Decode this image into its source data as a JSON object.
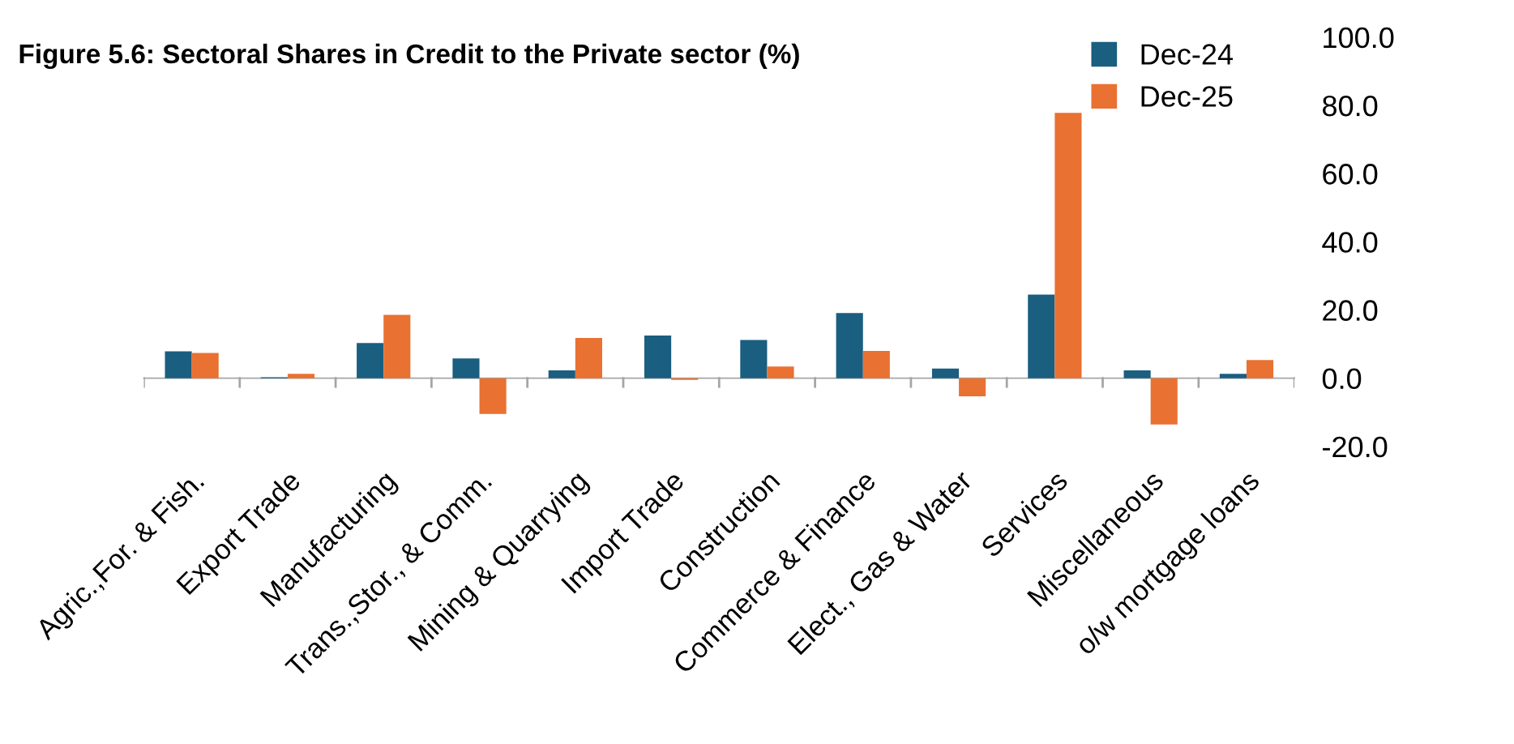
{
  "chart_data": {
    "type": "bar",
    "title": "Figure 5.6: Sectoral Shares in Credit to the Private sector (%)",
    "categories": [
      "Agric.,For. & Fish.",
      "Export Trade",
      "Manufacturing",
      "Trans.,Stor., & Comm.",
      "Mining & Quarrying",
      "Import Trade",
      "Construction",
      "Commerce & Finance",
      "Elect., Gas & Water",
      "Services",
      "Miscellaneous",
      "o/w mortgage loans"
    ],
    "series": [
      {
        "name": "Dec-24",
        "color": "#1a5e80",
        "values": [
          7.9,
          0.3,
          10.3,
          5.8,
          2.3,
          12.5,
          11.2,
          19.1,
          2.8,
          24.5,
          2.3,
          1.3
        ]
      },
      {
        "name": "Dec-25",
        "color": "#e97132",
        "values": [
          7.4,
          1.3,
          18.6,
          -10.5,
          11.8,
          -0.5,
          3.4,
          8.0,
          -5.3,
          77.8,
          -13.6,
          5.3
        ]
      }
    ],
    "ylim": [
      -20,
      100
    ],
    "yticks": [
      {
        "value": -20,
        "label": "-20.0"
      },
      {
        "value": 0,
        "label": "0.0"
      },
      {
        "value": 20,
        "label": "20.0"
      },
      {
        "value": 40,
        "label": "40.0"
      },
      {
        "value": 60,
        "label": "60.0"
      },
      {
        "value": 80,
        "label": "80.0"
      },
      {
        "value": 100,
        "label": "100.0"
      }
    ],
    "legend": "top right"
  }
}
